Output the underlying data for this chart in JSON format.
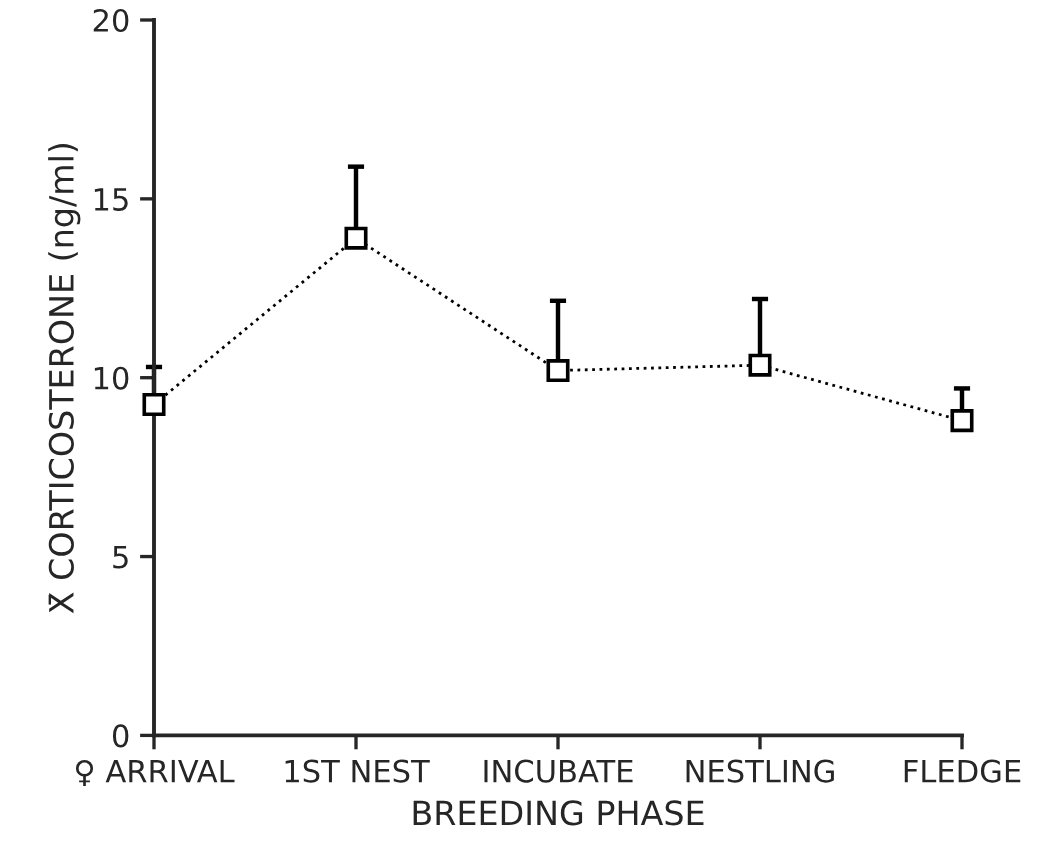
{
  "chart_data": {
    "type": "line",
    "xlabel": "BREEDING PHASE",
    "ylabel": "X̄ CORTICOSTERONE (ng/ml)",
    "categories": [
      "♀ ARRIVAL",
      "1ST NEST",
      "INCUBATE",
      "NESTLING",
      "FLEDGE"
    ],
    "series": [
      {
        "color": "#000000",
        "values": [
          9.25,
          13.9,
          10.2,
          10.35,
          8.8
        ],
        "errors": [
          [
            9.25,
            10.3
          ],
          [
            13.9,
            15.9
          ],
          [
            10.2,
            12.15
          ],
          [
            10.35,
            12.2
          ],
          [
            8.8,
            9.7
          ]
        ]
      }
    ],
    "ylim": [
      0,
      20
    ],
    "yticks": [
      0,
      5,
      10,
      15,
      20
    ],
    "grid": false,
    "legend": false,
    "marker": "square",
    "line_style": "dotted"
  }
}
